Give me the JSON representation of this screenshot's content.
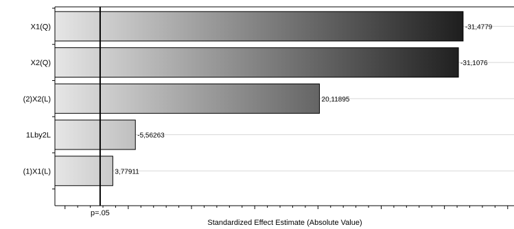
{
  "chart_data": {
    "type": "bar",
    "orientation": "horizontal",
    "title": "",
    "xlabel": "Standardized Effect Estimate (Absolute Value)",
    "ylabel": "",
    "xlim": [
      -0.8,
      35.5
    ],
    "grid": true,
    "legend": "none",
    "categories": [
      "X1(Q)",
      "X2(Q)",
      "(2)X2(L)",
      "1Lby2L",
      "(1)X1(L)"
    ],
    "values": [
      31.4779,
      31.1076,
      20.11895,
      5.56263,
      3.77911
    ],
    "labels": [
      "-31,4779",
      "-31,1076",
      "20,11895",
      "-5,56263",
      "3,77911"
    ],
    "reference_line": {
      "value": 2.776,
      "label": "p=.05"
    },
    "colors": {
      "bar_light": "#e6e6e6",
      "bar_dark": "#1a1a1a",
      "grid": "#d8d8d8",
      "ref_line": "#000000"
    }
  }
}
